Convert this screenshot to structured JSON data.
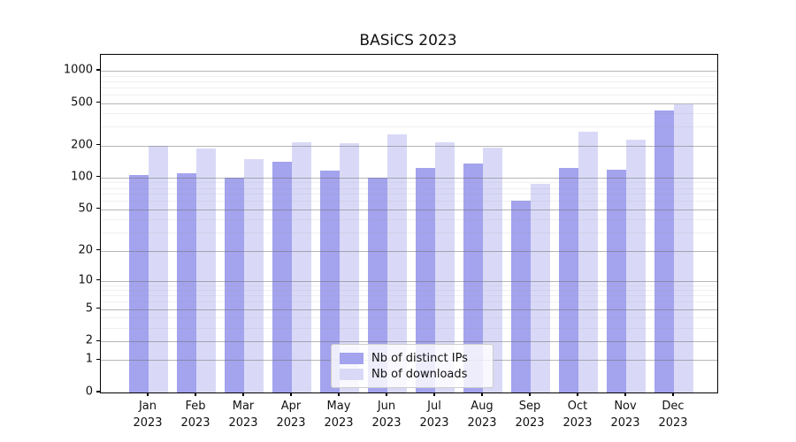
{
  "title": "BASiCS 2023",
  "legend": {
    "items": [
      {
        "label": "Nb of distinct IPs"
      },
      {
        "label": "Nb of downloads"
      }
    ]
  },
  "chart_data": {
    "type": "bar",
    "title": "BASiCS 2023",
    "categories": [
      "Jan 2023",
      "Feb 2023",
      "Mar 2023",
      "Apr 2023",
      "May 2023",
      "Jun 2023",
      "Jul 2023",
      "Aug 2023",
      "Sep 2023",
      "Oct 2023",
      "Nov 2023",
      "Dec 2023"
    ],
    "series": [
      {
        "name": "Nb of distinct IPs",
        "color": "#a3a3ee",
        "values": [
          105,
          110,
          100,
          140,
          116,
          100,
          122,
          135,
          60,
          122,
          118,
          425
        ]
      },
      {
        "name": "Nb of downloads",
        "color": "#d9d9f7",
        "values": [
          200,
          188,
          150,
          214,
          210,
          255,
          215,
          192,
          88,
          268,
          227,
          490
        ]
      }
    ],
    "xlabel": "",
    "ylabel": "",
    "yscale": "log10(value+1)",
    "yticks": [
      0,
      1,
      2,
      5,
      10,
      20,
      50,
      100,
      200,
      500,
      1000
    ],
    "minor_yticks": [
      3,
      4,
      6,
      7,
      8,
      9,
      30,
      40,
      60,
      70,
      80,
      90,
      300,
      400,
      600,
      700,
      800,
      900
    ],
    "ylim": [
      0,
      1400
    ],
    "grid": true,
    "legend_position": "lower center",
    "colors": {
      "major_grid": "#6e6e6e",
      "minor_grid": "#e8e8e8",
      "spine": "#000000"
    }
  }
}
